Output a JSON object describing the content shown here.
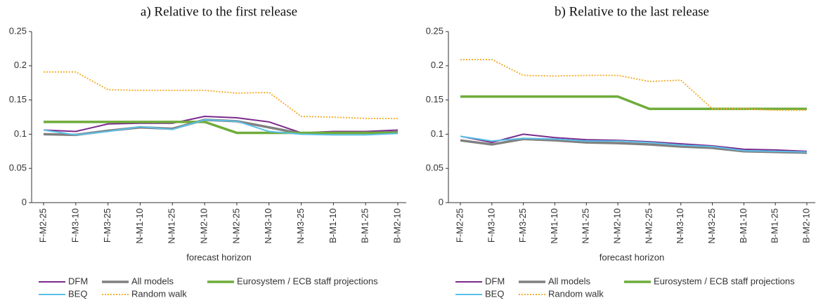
{
  "chart_data": [
    {
      "type": "line",
      "title": "a) Relative to the first release",
      "xlabel": "forecast horizon",
      "categories": [
        "F-M2-25",
        "F-M3-10",
        "F-M3-25",
        "N-M1-10",
        "N-M1-25",
        "N-M2-10",
        "N-M2-25",
        "N-M3-10",
        "N-M3-25",
        "B-M1-10",
        "B-M1-25",
        "B-M2-10"
      ],
      "ylim": [
        0,
        0.25
      ],
      "yticks": [
        0,
        0.05,
        0.1,
        0.15,
        0.2,
        0.25
      ],
      "series": [
        {
          "name": "DFM",
          "color": "#7b2a8c",
          "width": 2,
          "dash": "none",
          "values": [
            0.106,
            0.104,
            0.115,
            0.116,
            0.116,
            0.126,
            0.124,
            0.118,
            0.102,
            0.104,
            0.104,
            0.106
          ]
        },
        {
          "name": "All models",
          "color": "#808080",
          "width": 3.5,
          "dash": "none",
          "values": [
            0.1,
            0.099,
            0.105,
            0.11,
            0.108,
            0.121,
            0.119,
            0.11,
            0.101,
            0.102,
            0.102,
            0.103
          ]
        },
        {
          "name": "Eurosystem / ECB staff projections",
          "color": "#6fac3b",
          "width": 3.5,
          "dash": "none",
          "values": [
            0.118,
            0.118,
            0.118,
            0.118,
            0.118,
            0.118,
            0.102,
            0.102,
            0.102,
            0.102,
            0.102,
            0.102
          ]
        },
        {
          "name": "BEQ",
          "color": "#5bc0e8",
          "width": 2,
          "dash": "none",
          "values": [
            0.106,
            0.099,
            0.104,
            0.111,
            0.107,
            0.121,
            0.119,
            0.104,
            0.1,
            0.099,
            0.099,
            0.101
          ]
        },
        {
          "name": "Random walk",
          "color": "#f2b134",
          "width": 2,
          "dash": "2 2",
          "values": [
            0.191,
            0.191,
            0.165,
            0.164,
            0.164,
            0.164,
            0.16,
            0.161,
            0.126,
            0.125,
            0.123,
            0.123
          ]
        }
      ]
    },
    {
      "type": "line",
      "title": "b) Relative to the last release",
      "xlabel": "forecast horizon",
      "categories": [
        "F-M2-25",
        "F-M3-10",
        "F-M3-25",
        "N-M1-10",
        "N-M1-25",
        "N-M2-10",
        "N-M2-25",
        "N-M3-10",
        "N-M3-25",
        "B-M1-10",
        "B-M1-25",
        "B-M2-10"
      ],
      "ylim": [
        0,
        0.25
      ],
      "yticks": [
        0,
        0.05,
        0.1,
        0.15,
        0.2,
        0.25
      ],
      "series": [
        {
          "name": "DFM",
          "color": "#7b2a8c",
          "width": 2,
          "dash": "none",
          "values": [
            0.097,
            0.088,
            0.1,
            0.095,
            0.092,
            0.091,
            0.089,
            0.086,
            0.083,
            0.078,
            0.077,
            0.075
          ]
        },
        {
          "name": "All models",
          "color": "#808080",
          "width": 3.5,
          "dash": "none",
          "values": [
            0.091,
            0.085,
            0.093,
            0.091,
            0.088,
            0.087,
            0.085,
            0.082,
            0.08,
            0.075,
            0.074,
            0.073
          ]
        },
        {
          "name": "Eurosystem / ECB staff projections",
          "color": "#6fac3b",
          "width": 3.5,
          "dash": "none",
          "values": [
            0.155,
            0.155,
            0.155,
            0.155,
            0.155,
            0.155,
            0.137,
            0.137,
            0.137,
            0.137,
            0.137,
            0.137
          ]
        },
        {
          "name": "BEQ",
          "color": "#5bc0e8",
          "width": 2,
          "dash": "none",
          "values": [
            0.097,
            0.09,
            0.094,
            0.093,
            0.09,
            0.09,
            0.088,
            0.084,
            0.082,
            0.076,
            0.075,
            0.074
          ]
        },
        {
          "name": "Random walk",
          "color": "#f2b134",
          "width": 2,
          "dash": "2 2",
          "values": [
            0.209,
            0.209,
            0.186,
            0.185,
            0.186,
            0.186,
            0.177,
            0.179,
            0.137,
            0.137,
            0.135,
            0.135
          ]
        }
      ]
    }
  ]
}
